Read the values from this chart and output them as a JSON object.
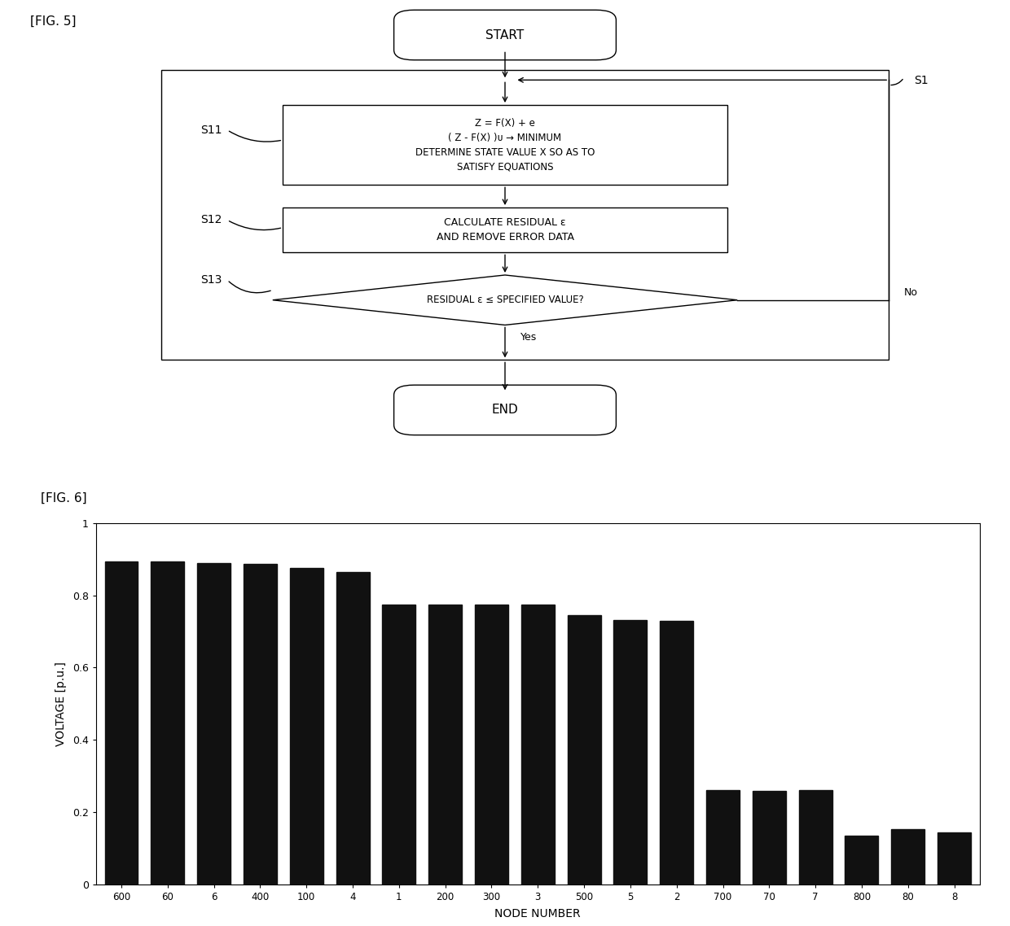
{
  "fig5_label": "[FIG. 5]",
  "fig6_label": "[FIG. 6]",
  "flowchart": {
    "start_text": "START",
    "end_text": "END",
    "s1_label": "S1",
    "s11_label": "S11",
    "s12_label": "S12",
    "s13_label": "S13",
    "box1_line1": "Z = F(X) + e",
    "box1_line2": "( Z - F(X) )ᴜ → MINIMUM",
    "box1_line3": "DETERMINE STATE VALUE X SO AS TO",
    "box1_line4": "SATISFY EQUATIONS",
    "box2_line1": "CALCULATE RESIDUAL ε",
    "box2_line2": "AND REMOVE ERROR DATA",
    "diamond_text": "RESIDUAL ε ≤ SPECIFIED VALUE?",
    "yes_label": "Yes",
    "no_label": "No"
  },
  "barchart": {
    "node_numbers": [
      "600",
      "60",
      "6",
      "400",
      "100",
      "4",
      "1",
      "200",
      "300",
      "3",
      "500",
      "5",
      "2",
      "700",
      "70",
      "7",
      "800",
      "80",
      "8"
    ],
    "voltages": [
      0.895,
      0.895,
      0.89,
      0.888,
      0.876,
      0.865,
      0.775,
      0.775,
      0.775,
      0.775,
      0.745,
      0.732,
      0.73,
      0.262,
      0.258,
      0.262,
      0.135,
      0.152,
      0.143
    ],
    "bar_color": "#111111",
    "xlabel": "NODE NUMBER",
    "ylabel": "VOLTAGE [p.u.]",
    "ylim": [
      0,
      1
    ],
    "yticks": [
      0,
      0.2,
      0.4,
      0.6,
      0.8,
      1
    ]
  },
  "bg_color": "#ffffff"
}
